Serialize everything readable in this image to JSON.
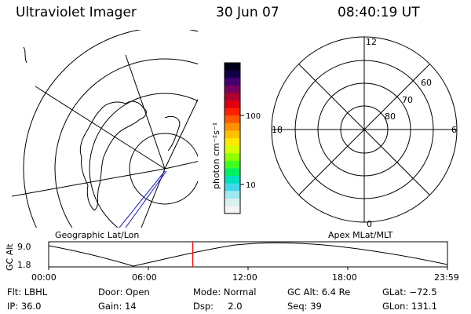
{
  "header": {
    "instrument": "Ultraviolet Imager",
    "date": "30 Jun 07",
    "time": "08:40:19 UT"
  },
  "colorbar": {
    "unit_label": "photon cm⁻²s⁻¹",
    "ticks": [
      "100",
      "10"
    ],
    "colors": [
      "#000018",
      "#120048",
      "#440070",
      "#7a0060",
      "#b00030",
      "#e00010",
      "#ff2000",
      "#ff5a00",
      "#ff9000",
      "#ffc000",
      "#ffe800",
      "#d8ff00",
      "#90ff00",
      "#40ff20",
      "#00f060",
      "#00e0c0",
      "#40d8e8",
      "#a0e8f0",
      "#d8f0f0",
      "#f4f4f4"
    ]
  },
  "left_panel": {
    "label": "Geographic Lat/Lon"
  },
  "right_panel": {
    "label": "Apex MLat/MLT",
    "mlt_labels": {
      "top": "12",
      "bottom": "0",
      "left": "18",
      "right": "6"
    },
    "lat_labels": [
      "60",
      "70",
      "80"
    ]
  },
  "timeline": {
    "ylabel": "GC Alt",
    "y_ticks": [
      "9.0",
      "1.8"
    ],
    "x_ticks": [
      "00:00",
      "06:00",
      "12:00",
      "18:00",
      "23:59"
    ],
    "marker_color": "#ff0000",
    "marker_time_hours": 8.672
  },
  "status": {
    "row1": [
      "Flt: LBHL",
      "Door: Open",
      "Mode: Normal",
      "GC Alt: 6.4 Re",
      "GLat: −72.5"
    ],
    "row2": [
      "IP: 36.0",
      "Gain: 14",
      "Dsp:     2.0",
      "Seq: 39",
      "GLon: 131.1"
    ]
  }
}
